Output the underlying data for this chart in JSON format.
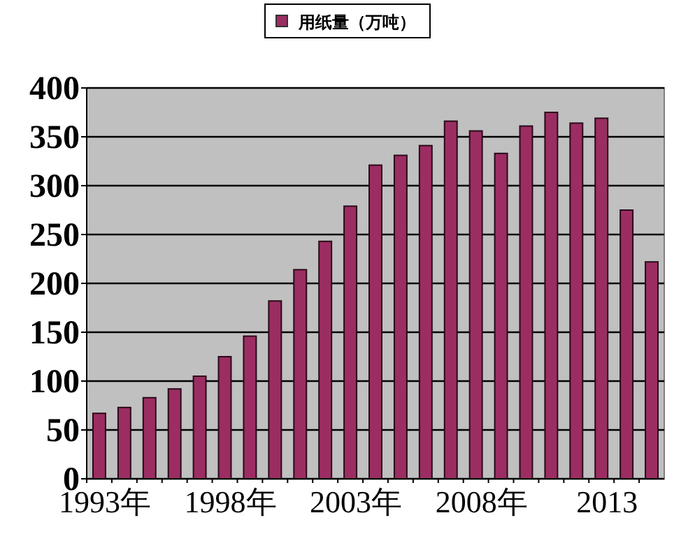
{
  "chart_data": {
    "type": "bar",
    "categories": [
      "1993年",
      null,
      null,
      null,
      null,
      "1998年",
      null,
      null,
      null,
      null,
      "2003年",
      null,
      null,
      null,
      null,
      "2008年",
      null,
      null,
      null,
      null,
      "2013",
      null,
      null
    ],
    "series": [
      {
        "name": "用纸量（万吨）",
        "color": "#9b2d62",
        "values": [
          67,
          73,
          83,
          92,
          105,
          125,
          146,
          182,
          214,
          243,
          279,
          321,
          331,
          341,
          366,
          356,
          333,
          361,
          375,
          364,
          369,
          275,
          222
        ]
      }
    ],
    "ylim": [
      0,
      400
    ],
    "yticks": [
      0,
      50,
      100,
      150,
      200,
      250,
      300,
      350,
      400
    ],
    "grid": "y",
    "legend": "top"
  }
}
